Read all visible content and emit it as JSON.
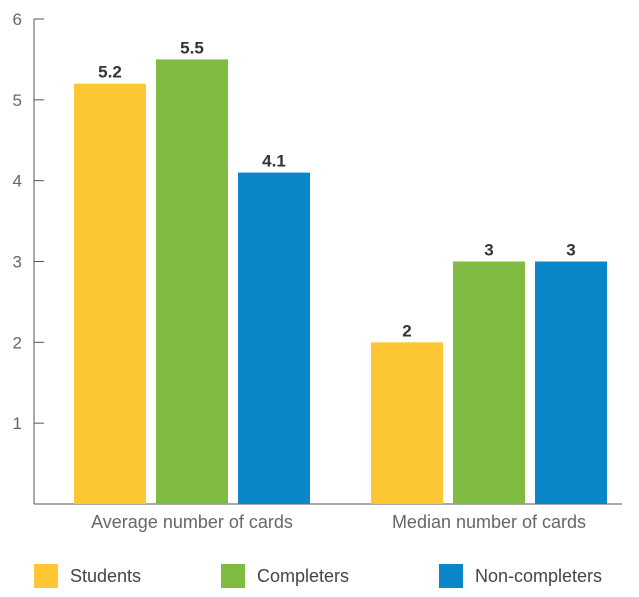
{
  "chart_data": {
    "type": "bar",
    "title": "",
    "xlabel": "",
    "ylabel": "",
    "categories": [
      "Average number of cards",
      "Median number of cards"
    ],
    "series": [
      {
        "name": "Students",
        "values": [
          5.2,
          2
        ],
        "labels": [
          "5.2",
          "2"
        ],
        "color": "#FDC734"
      },
      {
        "name": "Completers",
        "values": [
          5.5,
          3
        ],
        "labels": [
          "5.5",
          "3"
        ],
        "color": "#80BC41"
      },
      {
        "name": "Non-completers",
        "values": [
          4.1,
          3
        ],
        "labels": [
          "4.1",
          "3"
        ],
        "color": "#0A87C9"
      }
    ],
    "ylim": [
      0,
      6
    ],
    "yticks": [
      "1",
      "2",
      "3",
      "4",
      "5",
      "6"
    ],
    "grid": false,
    "legend": "bottom"
  }
}
